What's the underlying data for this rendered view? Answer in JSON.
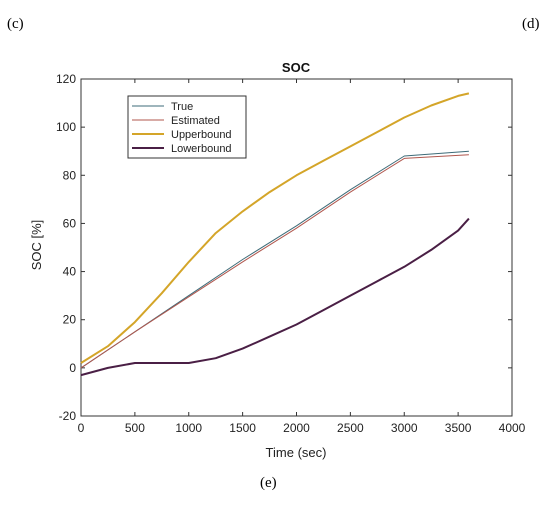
{
  "panels": {
    "c": "(c)",
    "d": "(d)",
    "e": "(e)"
  },
  "chart_data": {
    "type": "line",
    "title": "SOC",
    "xlabel": "Time (sec)",
    "ylabel": "SOC [%]",
    "xlim": [
      0,
      4000
    ],
    "ylim": [
      -20,
      120
    ],
    "xticks": [
      0,
      500,
      1000,
      1500,
      2000,
      2500,
      3000,
      3500,
      4000
    ],
    "yticks": [
      -20,
      0,
      20,
      40,
      60,
      80,
      100,
      120
    ],
    "grid": false,
    "legend_position": "top-left",
    "series": [
      {
        "name": "True",
        "color": "#3d6b78",
        "width": 1,
        "x": [
          0,
          500,
          1000,
          1500,
          2000,
          2500,
          3000,
          3600
        ],
        "y": [
          0,
          15,
          30,
          45,
          59,
          74,
          88,
          90
        ]
      },
      {
        "name": "Estimated",
        "color": "#b0574e",
        "width": 1,
        "x": [
          0,
          500,
          1000,
          1500,
          2000,
          2500,
          3000,
          3600
        ],
        "y": [
          0,
          15,
          29.5,
          44,
          58,
          73,
          87,
          88.5
        ]
      },
      {
        "name": "Upperbound",
        "color": "#d4a529",
        "width": 2,
        "x": [
          0,
          250,
          500,
          750,
          1000,
          1250,
          1500,
          1750,
          2000,
          2250,
          2500,
          2750,
          3000,
          3250,
          3500,
          3600
        ],
        "y": [
          2,
          9,
          19,
          31,
          44,
          56,
          65,
          73,
          80,
          86,
          92,
          98,
          104,
          109,
          113,
          114
        ]
      },
      {
        "name": "Lowerbound",
        "color": "#4a1f45",
        "width": 2,
        "x": [
          0,
          250,
          500,
          750,
          1000,
          1250,
          1500,
          1750,
          2000,
          2250,
          2500,
          2750,
          3000,
          3250,
          3500,
          3600
        ],
        "y": [
          -3,
          0,
          2,
          2,
          2,
          4,
          8,
          13,
          18,
          24,
          30,
          36,
          42,
          49,
          57,
          62
        ]
      }
    ]
  }
}
